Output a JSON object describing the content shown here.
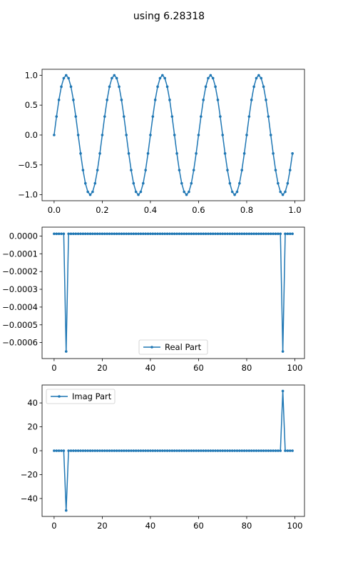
{
  "title": "using 6.28318",
  "series_color": "#1f77b4",
  "chart_data": [
    {
      "type": "line",
      "x_start": 0.0,
      "x_step": 0.01,
      "count": 100,
      "y_formula": "sin(2*pi*5*x)",
      "xlim": [
        -0.05,
        1.04
      ],
      "ylim": [
        -1.1,
        1.1
      ],
      "xticks": [
        0.0,
        0.2,
        0.4,
        0.6,
        0.8,
        1.0
      ],
      "xtick_labels": [
        "0.0",
        "0.2",
        "0.4",
        "0.6",
        "0.8",
        "1.0"
      ],
      "yticks": [
        -1.0,
        -0.5,
        0.0,
        0.5,
        1.0
      ],
      "ytick_labels": [
        "−1.0",
        "−0.5",
        "0.0",
        "0.5",
        "1.0"
      ],
      "marker": "dot",
      "grid": false
    },
    {
      "type": "line",
      "x_start": 0,
      "x_step": 1,
      "count": 100,
      "baseline": 1.25e-05,
      "spikes": [
        {
          "x": 5,
          "y": -0.00065
        },
        {
          "x": 95,
          "y": -0.00065
        }
      ],
      "xlim": [
        -5,
        104
      ],
      "ylim": [
        -0.00069,
        5e-05
      ],
      "xticks": [
        0,
        20,
        40,
        60,
        80,
        100
      ],
      "xtick_labels": [
        "0",
        "20",
        "40",
        "60",
        "80",
        "100"
      ],
      "yticks": [
        0.0,
        -0.0001,
        -0.0002,
        -0.0003,
        -0.0004,
        -0.0005,
        -0.0006
      ],
      "ytick_labels": [
        "0.0000",
        "−0.0001",
        "−0.0002",
        "−0.0003",
        "−0.0004",
        "−0.0005",
        "−0.0006"
      ],
      "legend": {
        "label": "Real Part",
        "placement": "lower-center"
      },
      "marker": "dot",
      "grid": false
    },
    {
      "type": "line",
      "x_start": 0,
      "x_step": 1,
      "count": 100,
      "baseline": 0,
      "spikes": [
        {
          "x": 5,
          "y": -50
        },
        {
          "x": 95,
          "y": 50
        }
      ],
      "xlim": [
        -5,
        104
      ],
      "ylim": [
        -55,
        55
      ],
      "xticks": [
        0,
        20,
        40,
        60,
        80,
        100
      ],
      "xtick_labels": [
        "0",
        "20",
        "40",
        "60",
        "80",
        "100"
      ],
      "yticks": [
        -40,
        -20,
        0,
        20,
        40
      ],
      "ytick_labels": [
        "−40",
        "−20",
        "0",
        "20",
        "40"
      ],
      "legend": {
        "label": "Imag Part",
        "placement": "upper-left"
      },
      "marker": "dot",
      "grid": false
    }
  ]
}
